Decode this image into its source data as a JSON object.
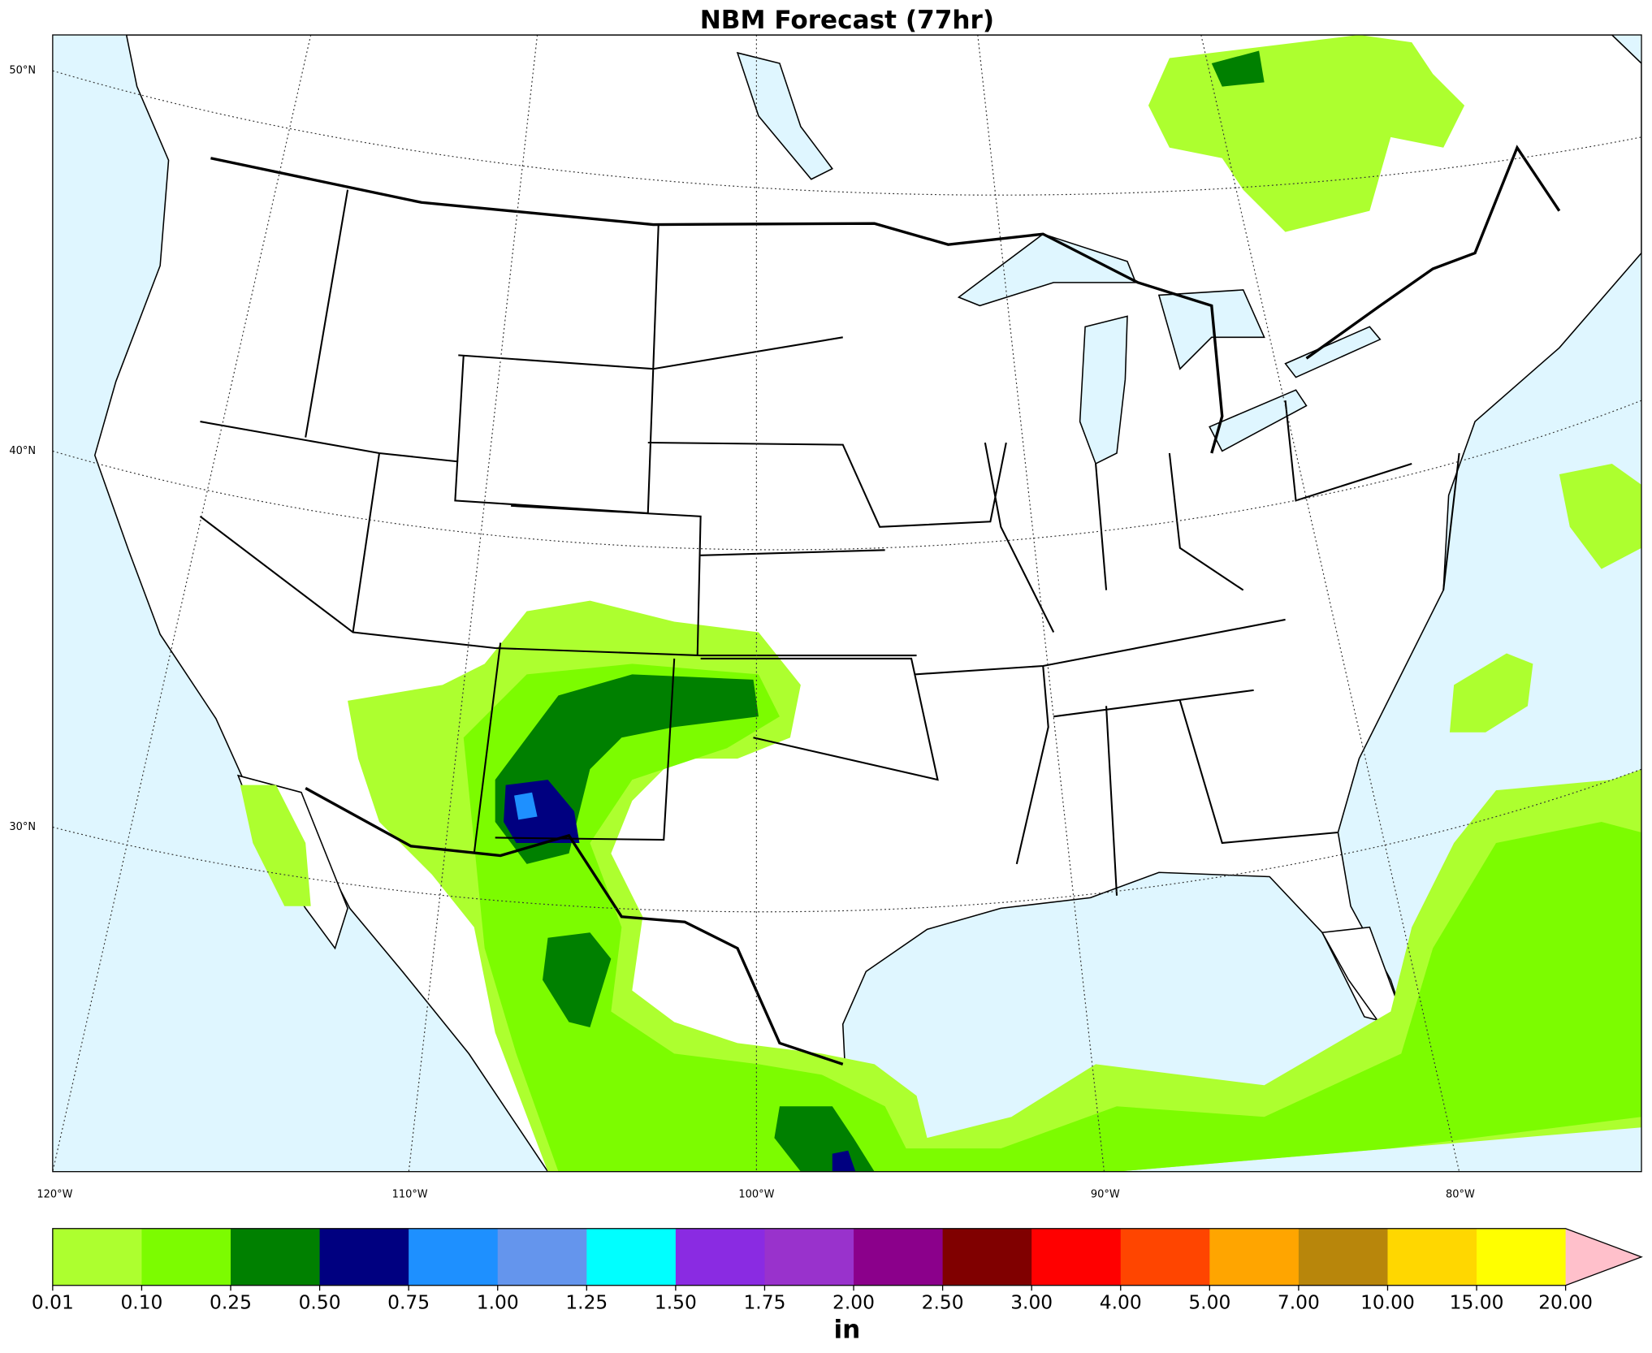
{
  "title": "NBM Forecast (77hr)",
  "map": {
    "lat_labels": [
      "50°N",
      "40°N",
      "30°N"
    ],
    "lon_labels": [
      "120°W",
      "110°W",
      "100°W",
      "90°W",
      "80°W"
    ]
  },
  "colorbar": {
    "ticks": [
      "0.01",
      "0.10",
      "0.25",
      "0.50",
      "0.75",
      "1.00",
      "1.25",
      "1.50",
      "1.75",
      "2.00",
      "2.50",
      "3.00",
      "4.00",
      "5.00",
      "7.00",
      "10.00",
      "15.00",
      "20.00"
    ],
    "colors": [
      "#adff2f",
      "#7cfc00",
      "#008000",
      "#000080",
      "#1e90ff",
      "#6495ed",
      "#00ffff",
      "#8a2be2",
      "#9932cc",
      "#8b008b",
      "#800000",
      "#ff0000",
      "#ff4500",
      "#ffa500",
      "#b8860b",
      "#ffd700",
      "#ffff00"
    ],
    "extend_color": "#ffc0cb",
    "unit": "in"
  }
}
